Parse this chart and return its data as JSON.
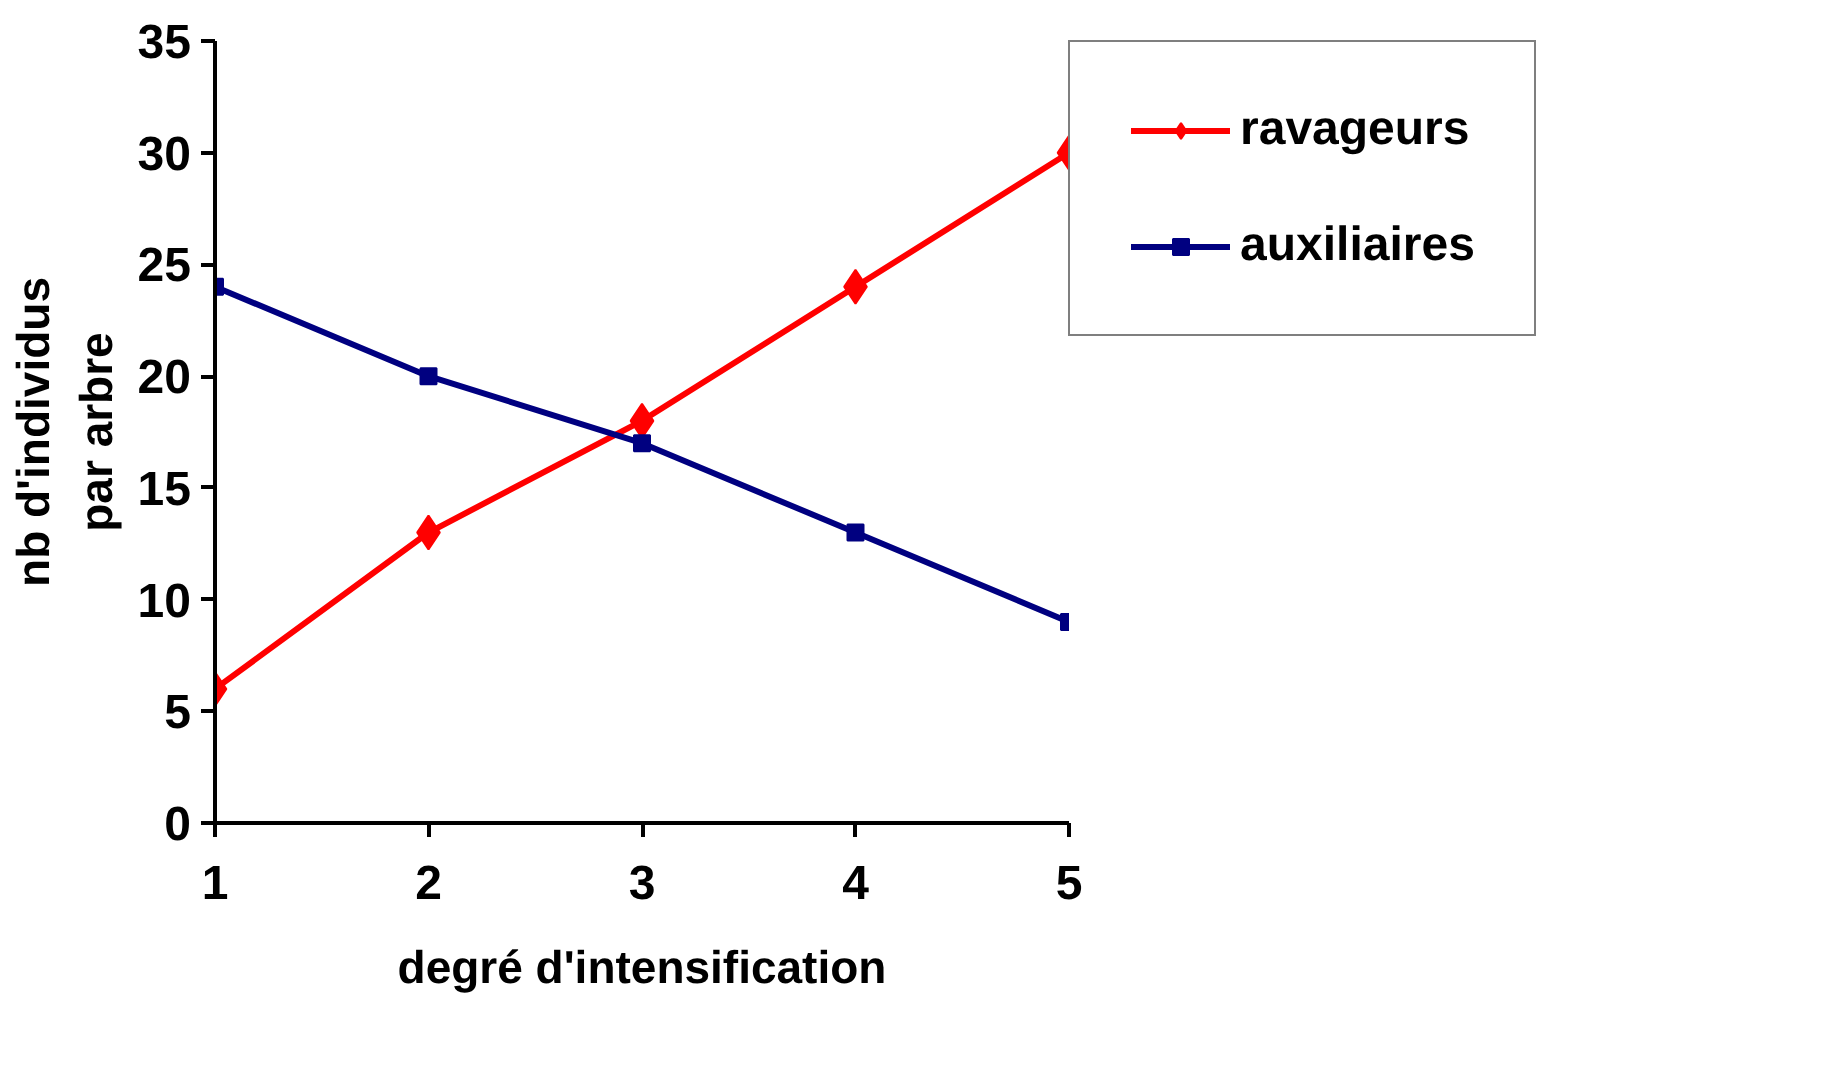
{
  "chart_data": {
    "type": "line",
    "xlabel": "degré d'intensification",
    "ylabel": "nb d'individus\npar arbre",
    "x": [
      1,
      2,
      3,
      4,
      5
    ],
    "xlim": [
      1,
      5
    ],
    "xticks": [
      1,
      2,
      3,
      4,
      5
    ],
    "ylim": [
      0,
      35
    ],
    "yticks": [
      0,
      5,
      10,
      15,
      20,
      25,
      30,
      35
    ],
    "series": [
      {
        "name": "ravageurs",
        "color": "#ff0000",
        "marker": "diamond",
        "values": [
          6,
          13,
          18,
          24,
          30
        ]
      },
      {
        "name": "auxiliaires",
        "color": "#000080",
        "marker": "square",
        "values": [
          24,
          20,
          17,
          13,
          9
        ]
      }
    ],
    "grid": false,
    "legend": "right",
    "line_style": "solid"
  }
}
